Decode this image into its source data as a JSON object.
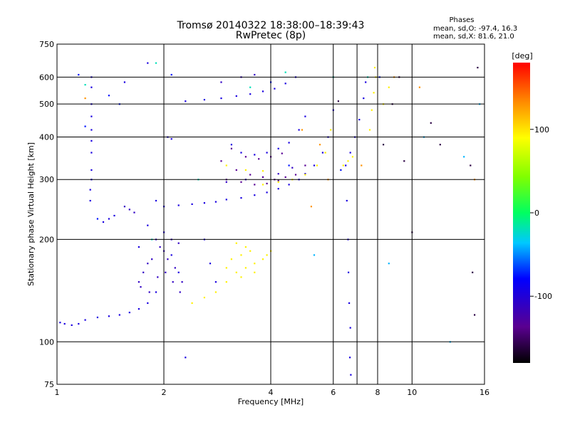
{
  "chart_data": {
    "type": "scatter",
    "title": "Tromsø 20140322 18:38:00–18:39:43",
    "subtitle": "RwPretec (8p)",
    "xlabel": "Frequency [MHz]",
    "ylabel": "Stationary phase Virtual Height [km]",
    "x_scale": "log",
    "y_scale": "log",
    "xlim": [
      1,
      16
    ],
    "ylim": [
      75,
      750
    ],
    "x_ticks": [
      1,
      2,
      4,
      6,
      8,
      10,
      16
    ],
    "y_ticks": [
      75,
      100,
      200,
      300,
      400,
      500,
      600,
      750
    ],
    "x_gridlines": [
      1,
      2,
      4,
      6,
      7,
      8,
      10,
      16
    ],
    "y_gridlines": [
      100,
      200,
      300,
      400,
      500,
      600
    ],
    "grid": true,
    "info": {
      "heading": "Phases",
      "line1": "mean, sd,O: -97.4, 16.3",
      "line2": "mean, sd,X:  81.6, 21.0"
    },
    "colorbar": {
      "unit": "[deg]",
      "range": [
        -180,
        180
      ],
      "ticks": [
        100,
        0,
        -100
      ],
      "placement": "right"
    },
    "series": [
      {
        "phase": -95,
        "points": [
          [
            1.02,
            114
          ],
          [
            1.05,
            113
          ],
          [
            1.1,
            112
          ],
          [
            1.15,
            113
          ],
          [
            1.2,
            116
          ],
          [
            1.3,
            118
          ],
          [
            1.4,
            119
          ],
          [
            1.5,
            120
          ],
          [
            1.6,
            122
          ],
          [
            1.7,
            125
          ],
          [
            1.8,
            130
          ],
          [
            1.9,
            140
          ],
          [
            2.0,
            250
          ],
          [
            2.2,
            252
          ],
          [
            2.4,
            254
          ],
          [
            2.6,
            256
          ],
          [
            2.8,
            258
          ],
          [
            3.0,
            262
          ],
          [
            3.3,
            265
          ],
          [
            3.6,
            270
          ],
          [
            3.9,
            275
          ],
          [
            4.2,
            282
          ],
          [
            4.5,
            290
          ],
          [
            4.8,
            300
          ],
          [
            5.0,
            312
          ],
          [
            5.3,
            330
          ],
          [
            5.6,
            360
          ],
          [
            5.8,
            400
          ],
          [
            6.0,
            480
          ],
          [
            2.3,
            510
          ],
          [
            2.6,
            515
          ],
          [
            2.9,
            520
          ],
          [
            3.2,
            528
          ],
          [
            3.5,
            535
          ],
          [
            3.8,
            545
          ],
          [
            4.1,
            555
          ],
          [
            4.4,
            575
          ],
          [
            4.7,
            600
          ],
          [
            3.1,
            380
          ],
          [
            3.3,
            360
          ],
          [
            3.6,
            355
          ],
          [
            3.9,
            360
          ],
          [
            4.2,
            370
          ],
          [
            4.5,
            385
          ],
          [
            4.8,
            420
          ],
          [
            5.0,
            460
          ],
          [
            6.5,
            330
          ],
          [
            6.7,
            360
          ],
          [
            6.9,
            400
          ],
          [
            7.1,
            450
          ],
          [
            7.3,
            520
          ],
          [
            7.4,
            580
          ],
          [
            1.7,
            190
          ],
          [
            1.8,
            220
          ],
          [
            1.9,
            260
          ],
          [
            2.0,
            210
          ],
          [
            2.1,
            180
          ],
          [
            2.2,
            160
          ],
          [
            2.6,
            200
          ],
          [
            2.7,
            170
          ],
          [
            2.8,
            150
          ],
          [
            1.25,
            600
          ],
          [
            1.25,
            500
          ],
          [
            1.25,
            420
          ],
          [
            1.25,
            360
          ],
          [
            1.25,
            300
          ],
          [
            1.24,
            260
          ],
          [
            1.25,
            560
          ],
          [
            1.25,
            460
          ],
          [
            1.25,
            390
          ],
          [
            1.25,
            320
          ],
          [
            1.24,
            280
          ],
          [
            6.55,
            260
          ],
          [
            6.6,
            200
          ],
          [
            6.62,
            160
          ],
          [
            6.65,
            130
          ],
          [
            6.7,
            110
          ],
          [
            6.68,
            90
          ],
          [
            6.72,
            80
          ],
          [
            1.4,
            230
          ],
          [
            1.45,
            235
          ],
          [
            1.35,
            225
          ],
          [
            2.3,
            90
          ],
          [
            1.8,
            660
          ],
          [
            1.55,
            580
          ],
          [
            2.05,
            400
          ],
          [
            2.1,
            395
          ]
        ]
      },
      {
        "phase": -110,
        "points": [
          [
            1.7,
            150
          ],
          [
            1.8,
            170
          ],
          [
            1.9,
            200
          ],
          [
            2.0,
            185
          ],
          [
            2.1,
            200
          ],
          [
            2.2,
            195
          ],
          [
            1.75,
            160
          ],
          [
            1.85,
            175
          ],
          [
            1.95,
            190
          ],
          [
            2.05,
            175
          ],
          [
            2.15,
            165
          ],
          [
            2.25,
            150
          ],
          [
            1.72,
            145
          ],
          [
            1.82,
            140
          ],
          [
            1.92,
            155
          ],
          [
            2.02,
            160
          ],
          [
            2.12,
            150
          ],
          [
            2.22,
            140
          ],
          [
            3.0,
            295
          ],
          [
            3.4,
            300
          ],
          [
            3.8,
            305
          ],
          [
            4.2,
            312
          ],
          [
            4.6,
            325
          ],
          [
            2.9,
            580
          ],
          [
            3.3,
            600
          ],
          [
            3.6,
            610
          ],
          [
            1.55,
            250
          ],
          [
            1.6,
            245
          ],
          [
            1.65,
            240
          ]
        ]
      },
      {
        "phase": -135,
        "points": [
          [
            2.9,
            340
          ],
          [
            3.2,
            320
          ],
          [
            3.5,
            310
          ],
          [
            3.8,
            305
          ],
          [
            4.1,
            300
          ],
          [
            4.4,
            305
          ],
          [
            4.7,
            310
          ],
          [
            5.0,
            330
          ],
          [
            3.0,
            300
          ],
          [
            3.3,
            295
          ],
          [
            3.6,
            290
          ],
          [
            3.9,
            292
          ],
          [
            4.2,
            298
          ],
          [
            3.1,
            370
          ],
          [
            3.4,
            350
          ],
          [
            3.7,
            345
          ],
          [
            4.0,
            350
          ],
          [
            4.3,
            358
          ]
        ]
      },
      {
        "phase": -20,
        "points": [
          [
            1.2,
            570
          ],
          [
            1.9,
            660
          ],
          [
            1.85,
            200
          ],
          [
            2.5,
            300
          ],
          [
            3.5,
            560
          ],
          [
            4.4,
            620
          ],
          [
            6.0,
            600
          ],
          [
            7.5,
            600
          ]
        ]
      },
      {
        "phase": 95,
        "points": [
          [
            2.4,
            130
          ],
          [
            2.6,
            135
          ],
          [
            2.8,
            140
          ],
          [
            3.0,
            150
          ],
          [
            3.2,
            160
          ],
          [
            3.4,
            165
          ],
          [
            3.6,
            170
          ],
          [
            3.8,
            175
          ],
          [
            4.0,
            185
          ],
          [
            3.1,
            175
          ],
          [
            3.3,
            180
          ],
          [
            3.5,
            185
          ],
          [
            3.2,
            195
          ],
          [
            3.4,
            190
          ],
          [
            3.0,
            165
          ],
          [
            3.3,
            155
          ],
          [
            3.6,
            160
          ],
          [
            3.9,
            180
          ],
          [
            3.8,
            290
          ],
          [
            4.2,
            295
          ],
          [
            4.6,
            300
          ],
          [
            5.0,
            310
          ],
          [
            5.4,
            330
          ],
          [
            5.7,
            360
          ],
          [
            5.9,
            420
          ],
          [
            3.0,
            330
          ],
          [
            3.4,
            320
          ],
          [
            3.8,
            318
          ],
          [
            7.6,
            420
          ],
          [
            7.7,
            480
          ],
          [
            7.8,
            540
          ],
          [
            7.9,
            600
          ],
          [
            7.85,
            640
          ],
          [
            8.3,
            500
          ],
          [
            8.6,
            560
          ],
          [
            6.4,
            330
          ],
          [
            6.6,
            340
          ],
          [
            6.8,
            350
          ]
        ]
      },
      {
        "phase": 130,
        "points": [
          [
            1.2,
            520
          ],
          [
            5.5,
            380
          ],
          [
            5.8,
            300
          ],
          [
            5.2,
            250
          ],
          [
            4.9,
            420
          ],
          [
            7.2,
            330
          ],
          [
            6.3,
            320
          ],
          [
            8.9,
            600
          ],
          [
            10.5,
            560
          ],
          [
            15,
            300
          ]
        ]
      },
      {
        "phase": -75,
        "points": [
          [
            1.15,
            610
          ],
          [
            1.2,
            430
          ],
          [
            1.3,
            230
          ],
          [
            1.4,
            530
          ],
          [
            1.5,
            500
          ],
          [
            2.1,
            610
          ],
          [
            4.0,
            580
          ],
          [
            4.5,
            330
          ],
          [
            6.3,
            320
          ],
          [
            8.1,
            600
          ]
        ]
      },
      {
        "phase": -160,
        "points": [
          [
            8.8,
            500
          ],
          [
            9.2,
            600
          ],
          [
            10.0,
            210
          ],
          [
            11.3,
            440
          ],
          [
            12.0,
            380
          ],
          [
            14.6,
            330
          ],
          [
            14.8,
            160
          ],
          [
            15.0,
            120
          ],
          [
            15.3,
            640
          ],
          [
            8.3,
            380
          ],
          [
            6.2,
            510
          ],
          [
            9.5,
            340
          ]
        ]
      },
      {
        "phase": -40,
        "points": [
          [
            8.6,
            170
          ],
          [
            5.3,
            180
          ],
          [
            10.8,
            400
          ],
          [
            14,
            350
          ],
          [
            12.8,
            100
          ],
          [
            15.5,
            500
          ]
        ]
      }
    ]
  }
}
